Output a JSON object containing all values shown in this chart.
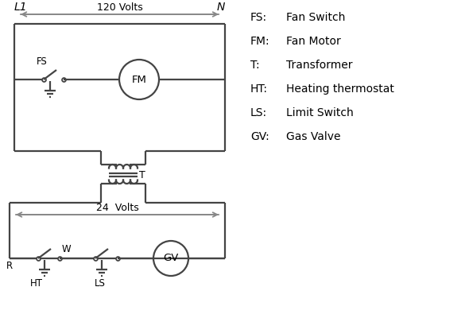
{
  "bg_color": "#ffffff",
  "line_color": "#444444",
  "arrow_color": "#888888",
  "text_color": "#000000",
  "legend": [
    [
      "FS:",
      "Fan Switch"
    ],
    [
      "FM:",
      "Fan Motor"
    ],
    [
      "T:",
      "Transformer"
    ],
    [
      "HT:",
      "Heating thermostat"
    ],
    [
      "LS:",
      "Limit Switch"
    ],
    [
      "GV:",
      "Gas Valve"
    ]
  ],
  "L1_label": "L1",
  "N_label": "N",
  "volts120_label": "120 Volts",
  "volts24_label": "24  Volts",
  "T_label": "T",
  "R_label": "R",
  "W_label": "W",
  "HT_label": "HT",
  "LS_label": "LS",
  "FS_label": "FS",
  "FM_label": "FM",
  "GV_label": "GV"
}
